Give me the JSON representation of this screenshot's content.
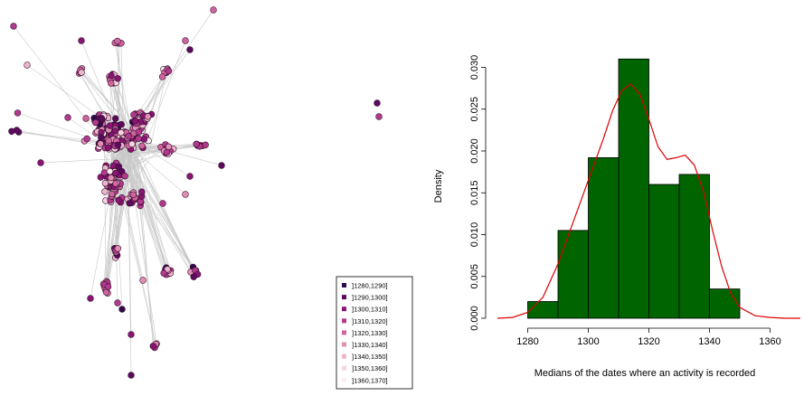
{
  "chart_data": [
    {
      "type": "network",
      "legend": {
        "placement": "bottom-center",
        "entries": [
          {
            "label": "]1280,1290]",
            "color": "#2d0a4a"
          },
          {
            "label": "]1290,1300]",
            "color": "#5b0a5e"
          },
          {
            "label": "]1300,1310]",
            "color": "#8a1473"
          },
          {
            "label": "]1310,1320]",
            "color": "#b23a8e"
          },
          {
            "label": "]1320,1330]",
            "color": "#d0649e"
          },
          {
            "label": "]1330,1340]",
            "color": "#e08fb5"
          },
          {
            "label": "]1340,1350]",
            "color": "#ecb6cc"
          },
          {
            "label": "]1350,1360]",
            "color": "#f4d6df"
          },
          {
            "label": "]1360,1370]",
            "color": "#faeef1"
          }
        ]
      },
      "edge_color": "#c8c8c8"
    },
    {
      "type": "bar",
      "subtype": "histogram-with-density",
      "xlabel": "Medians of the dates where an activity is recorded",
      "ylabel": "Density",
      "xlim": [
        1270,
        1370
      ],
      "ylim": [
        0,
        0.032
      ],
      "xticks": [
        "1280",
        "1300",
        "1320",
        "1340",
        "1360"
      ],
      "yticks": [
        "0.000",
        "0.005",
        "0.010",
        "0.015",
        "0.020",
        "0.025",
        "0.030"
      ],
      "bins": [
        {
          "from": 1280,
          "to": 1290,
          "density": 0.002
        },
        {
          "from": 1290,
          "to": 1300,
          "density": 0.0105
        },
        {
          "from": 1300,
          "to": 1310,
          "density": 0.0192
        },
        {
          "from": 1310,
          "to": 1320,
          "density": 0.031
        },
        {
          "from": 1320,
          "to": 1330,
          "density": 0.016
        },
        {
          "from": 1330,
          "to": 1340,
          "density": 0.0172
        },
        {
          "from": 1340,
          "to": 1350,
          "density": 0.0035
        }
      ],
      "bar_color": "#006400",
      "density_curve": {
        "color": "#dd0000",
        "x": [
          1270,
          1275,
          1280,
          1285,
          1290,
          1295,
          1300,
          1305,
          1308,
          1311,
          1314,
          1317,
          1320,
          1323,
          1326,
          1329,
          1332,
          1335,
          1338,
          1341,
          1344,
          1347,
          1350,
          1355,
          1360,
          1365,
          1370
        ],
        "y": [
          0.0,
          0.0001,
          0.0007,
          0.0025,
          0.0065,
          0.0115,
          0.0165,
          0.0215,
          0.0248,
          0.0272,
          0.028,
          0.0268,
          0.0238,
          0.0205,
          0.019,
          0.0192,
          0.0195,
          0.0183,
          0.0152,
          0.0105,
          0.0062,
          0.003,
          0.0013,
          0.0003,
          0.0001,
          0.0,
          0.0
        ]
      }
    }
  ]
}
